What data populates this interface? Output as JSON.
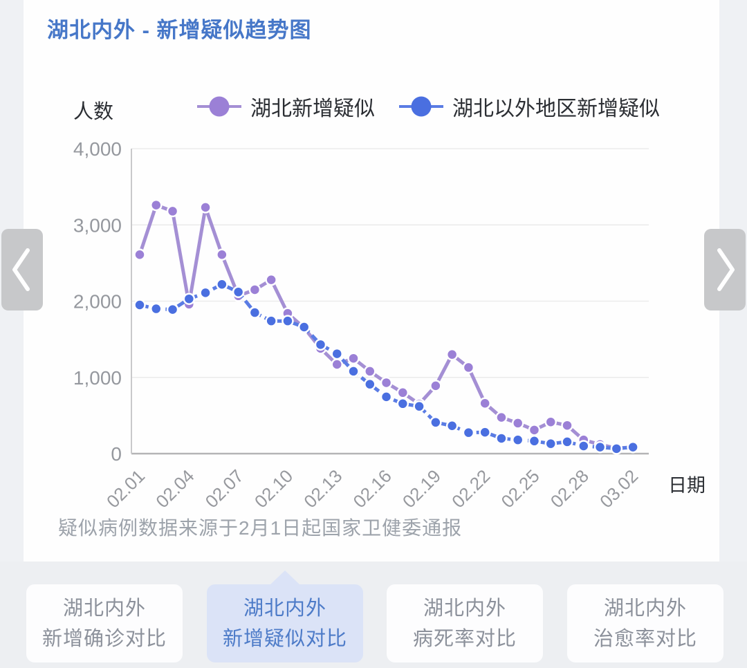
{
  "chart_data": {
    "type": "line",
    "title": "湖北内外 - 新增疑似趋势图",
    "ylabel": "人数",
    "xlabel": "日期",
    "source_note": "疑似病例数据来源于2月1日起国家卫健委通报",
    "x": [
      "02.01",
      "02.02",
      "02.03",
      "02.04",
      "02.05",
      "02.06",
      "02.07",
      "02.08",
      "02.09",
      "02.10",
      "02.11",
      "02.12",
      "02.13",
      "02.14",
      "02.15",
      "02.16",
      "02.17",
      "02.18",
      "02.19",
      "02.20",
      "02.21",
      "02.22",
      "02.23",
      "02.24",
      "02.25",
      "02.26",
      "02.27",
      "02.28",
      "02.29",
      "03.01",
      "03.02"
    ],
    "x_tick_every": 3,
    "x_tick_labels": [
      "02.01",
      "02.04",
      "02.07",
      "02.10",
      "02.13",
      "02.16",
      "02.19",
      "02.22",
      "02.25",
      "02.28",
      "03.02"
    ],
    "ylim": [
      0,
      4000
    ],
    "y_tick_values": [
      0,
      1000,
      2000,
      3000,
      4000
    ],
    "y_ticks": [
      "0",
      "1,000",
      "2,000",
      "3,000",
      "4,000"
    ],
    "grid": true,
    "legend_position": "top",
    "series": [
      {
        "name": "湖北新增疑似",
        "color": "#9b80d6",
        "line_color": "#a48fd4",
        "dashed": false,
        "values": [
          2610,
          3260,
          3180,
          1960,
          3230,
          2610,
          2070,
          2150,
          2280,
          1840,
          1650,
          1380,
          1170,
          1250,
          1080,
          930,
          800,
          650,
          890,
          1300,
          1130,
          660,
          475,
          400,
          310,
          415,
          370,
          180,
          120,
          70,
          85
        ]
      },
      {
        "name": "湖北以外地区新增疑似",
        "color": "#4a6fe0",
        "line_color": "#5a7ce4",
        "dashed": true,
        "values": [
          1950,
          1900,
          1890,
          2030,
          2110,
          2220,
          2120,
          1850,
          1740,
          1740,
          1660,
          1430,
          1310,
          1080,
          910,
          745,
          655,
          620,
          410,
          365,
          275,
          280,
          200,
          180,
          165,
          130,
          155,
          100,
          85,
          65,
          85
        ]
      }
    ]
  },
  "colors": {
    "title_text": "#4677c8",
    "hubei_series": "#9b80d6",
    "outside_hubei_series": "#4a6fe0",
    "active_tab_bg": "#dbe3f7",
    "active_tab_text": "#4d7bc8",
    "inactive_tab_text": "#8c919b"
  },
  "nav_icons": {
    "prev": "chevron-left",
    "next": "chevron-right"
  },
  "tabs": [
    {
      "line1": "湖北内外",
      "line2": "新增确诊对比",
      "active": false
    },
    {
      "line1": "湖北内外",
      "line2": "新增疑似对比",
      "active": true
    },
    {
      "line1": "湖北内外",
      "line2": "病死率对比",
      "active": false
    },
    {
      "line1": "湖北内外",
      "line2": "治愈率对比",
      "active": false
    }
  ]
}
